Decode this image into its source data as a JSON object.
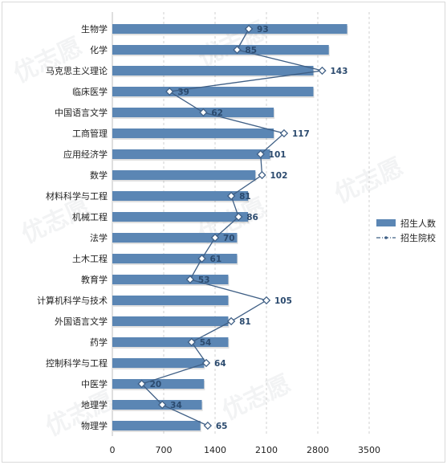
{
  "chart_data": {
    "type": "bar",
    "orientation": "horizontal",
    "categories": [
      "生物学",
      "化学",
      "马克思主义理论",
      "临床医学",
      "中国语言文学",
      "工商管理",
      "应用经济学",
      "数学",
      "材料科学与工程",
      "机械工程",
      "法学",
      "土木工程",
      "教育学",
      "计算机科学与技术",
      "外国语言文学",
      "药学",
      "控制科学与工程",
      "中医学",
      "地理学",
      "物理学"
    ],
    "series": [
      {
        "name": "招生人数",
        "type": "bar",
        "color": "#5b86b4",
        "values": [
          3200,
          2950,
          2740,
          2740,
          2200,
          2200,
          2150,
          1950,
          1850,
          1850,
          1700,
          1700,
          1580,
          1580,
          1580,
          1580,
          1250,
          1250,
          1220,
          1200
        ]
      },
      {
        "name": "招生院校",
        "type": "line",
        "color": "#3f5f85",
        "values": [
          93,
          85,
          143,
          39,
          62,
          117,
          101,
          102,
          81,
          86,
          70,
          61,
          53,
          105,
          81,
          54,
          64,
          20,
          34,
          65
        ]
      }
    ],
    "xlim": [
      0,
      3500
    ],
    "xticks": [
      "0",
      "700",
      "1400",
      "2100",
      "2800",
      "3500"
    ],
    "xlabel": "",
    "ylabel": "",
    "title": "",
    "grid": "vertical dashed",
    "legend": "right"
  },
  "watermark": "优志愿"
}
